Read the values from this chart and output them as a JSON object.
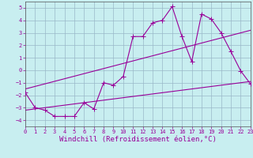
{
  "xlabel": "Windchill (Refroidissement éolien,°C)",
  "background_color": "#c8eef0",
  "grid_color": "#9ab8c8",
  "line_color": "#990099",
  "xlim": [
    0,
    23
  ],
  "ylim": [
    -4.5,
    5.5
  ],
  "yticks": [
    -4,
    -3,
    -2,
    -1,
    0,
    1,
    2,
    3,
    4,
    5
  ],
  "xticks": [
    0,
    1,
    2,
    3,
    4,
    5,
    6,
    7,
    8,
    9,
    10,
    11,
    12,
    13,
    14,
    15,
    16,
    17,
    18,
    19,
    20,
    21,
    22,
    23
  ],
  "line1_x": [
    0,
    1,
    2,
    3,
    4,
    5,
    6,
    7,
    8,
    9,
    10,
    11,
    12,
    13,
    14,
    15,
    16,
    17,
    18,
    19,
    20,
    21,
    22,
    23
  ],
  "line1_y": [
    -1.8,
    -3.0,
    -3.2,
    -3.7,
    -3.7,
    -3.7,
    -2.6,
    -3.1,
    -1.0,
    -1.2,
    -0.5,
    2.7,
    2.7,
    3.8,
    4.0,
    5.1,
    2.7,
    0.7,
    4.5,
    4.1,
    3.0,
    1.5,
    -0.05,
    -1.1
  ],
  "line2_x": [
    0,
    23
  ],
  "line2_y": [
    -3.2,
    -0.9
  ],
  "line3_x": [
    0,
    23
  ],
  "line3_y": [
    -1.5,
    3.2
  ],
  "marker_size": 3,
  "line_width": 0.8,
  "tick_fontsize": 5.0,
  "xlabel_fontsize": 6.5
}
